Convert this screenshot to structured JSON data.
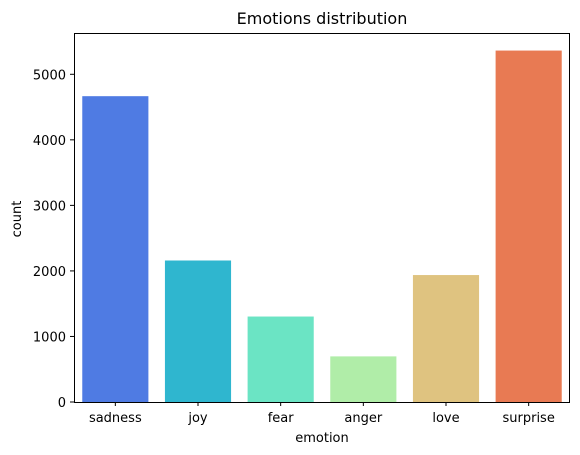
{
  "chart_data": {
    "type": "bar",
    "title": "Emotions distribution",
    "xlabel": "emotion",
    "ylabel": "count",
    "categories": [
      "sadness",
      "joy",
      "fear",
      "anger",
      "love",
      "surprise"
    ],
    "values": [
      4666,
      2159,
      1304,
      696,
      1937,
      5362
    ],
    "colors": [
      "#4f7be3",
      "#2fb6cf",
      "#6be4c4",
      "#b0eda8",
      "#dfc380",
      "#e87a53"
    ],
    "ylim": [
      0,
      5630
    ],
    "yticks": [
      0,
      1000,
      2000,
      3000,
      4000,
      5000
    ],
    "grid": false,
    "legend": "none"
  }
}
